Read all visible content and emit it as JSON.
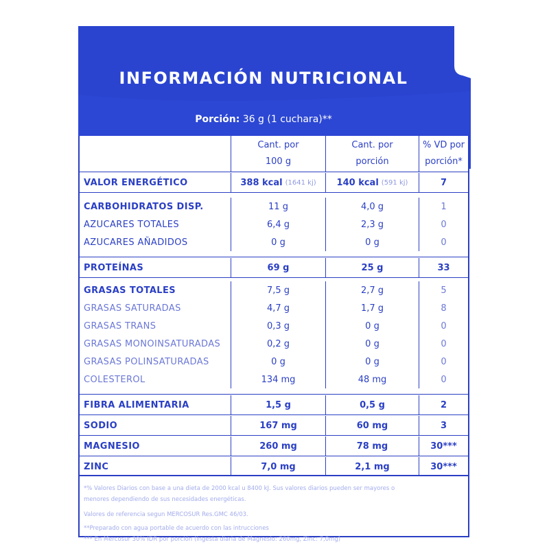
{
  "title": "INFORMACIÓN NUTRICIONAL",
  "portion": {
    "label": "Porción:",
    "value": " 36 g (1 cuchara)**"
  },
  "columns": [
    {
      "line1": "Cant. por",
      "line2": "100 g"
    },
    {
      "line1": "Cant. por",
      "line2": "porción"
    },
    {
      "line1": "% VD por",
      "line2": "porción*"
    }
  ],
  "rows": [
    {
      "name": "VALOR ENERGÉTICO",
      "per100": "388 kcal",
      "per100_sub": "(1641 kj)",
      "portion": "140 kcal",
      "portion_sub": "(591 kj)",
      "vd": "7"
    },
    {
      "name": "CARBOHIDRATOS DISP.",
      "per100": "11 g",
      "portion": "4,0 g",
      "vd": "1"
    },
    {
      "name": "AZUCARES TOTALES",
      "per100": "6,4 g",
      "portion": "2,3 g",
      "vd": "0"
    },
    {
      "name": "AZUCARES AÑADIDOS",
      "per100": "0 g",
      "portion": "0 g",
      "vd": "0"
    },
    {
      "name": "PROTEÍNAS",
      "per100": "69 g",
      "portion": "25 g",
      "vd": "33"
    },
    {
      "name": "GRASAS TOTALES",
      "per100": "7,5 g",
      "portion": "2,7 g",
      "vd": "5"
    },
    {
      "name": "GRASAS SATURADAS",
      "per100": "4,7 g",
      "portion": "1,7 g",
      "vd": "8"
    },
    {
      "name": "GRASAS TRANS",
      "per100": "0,3 g",
      "portion": "0 g",
      "vd": "0"
    },
    {
      "name": "GRASAS MONOINSATURADAS",
      "per100": "0,2 g",
      "portion": "0 g",
      "vd": "0"
    },
    {
      "name": "GRASAS POLINSATURADAS",
      "per100": "0 g",
      "portion": "0 g",
      "vd": "0"
    },
    {
      "name": "COLESTEROL",
      "per100": "134 mg",
      "portion": "48 mg",
      "vd": "0"
    },
    {
      "name": "FIBRA ALIMENTARIA",
      "per100": "1,5 g",
      "portion": "0,5 g",
      "vd": "2"
    },
    {
      "name": "SODIO",
      "per100": "167 mg",
      "portion": "60 mg",
      "vd": "3"
    },
    {
      "name": "MAGNESIO",
      "per100": "260 mg",
      "portion": "78 mg",
      "vd": "30***"
    },
    {
      "name": "ZINC",
      "per100": "7,0 mg",
      "portion": "2,1 mg",
      "vd": "30***"
    }
  ],
  "footnotes": [
    "*% Valores Diarios con base a una dieta de 2000 kcal u 8400 kJ. Sus valores diarios pueden ser mayores o",
    "menores dependiendo de sus necesidades energéticas.",
    "Valores de referencia segun MERCOSUR Res.GMC 46/03.",
    "**Preparado con agua portable de acuerdo con las intrucciones",
    "*** En Mercosur 30% IDR por porción (ingesta diaria de Magnesio: 260mg, Zinc: 7,0mg)"
  ],
  "colors": {
    "header_blue": "#2a44d0",
    "text_blue": "#2a3fc4",
    "muted_blue": "#6b78d6"
  }
}
